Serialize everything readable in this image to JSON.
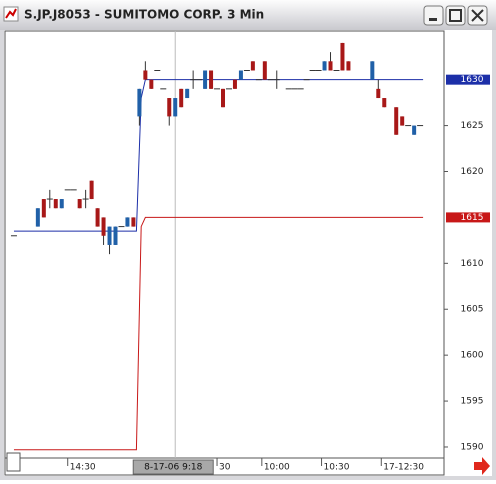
{
  "chart_data": {
    "type": "candlestick",
    "title": "S.JP.J8053 - SUMITOMO CORP. 3 Min",
    "x": [
      0,
      4,
      5,
      6,
      7,
      8,
      9,
      10,
      11,
      12,
      13,
      14,
      15,
      16,
      17,
      18,
      19,
      20,
      21,
      22,
      23,
      24,
      25,
      26,
      27,
      28,
      29,
      30,
      31,
      32,
      33,
      34,
      35,
      36,
      37,
      38,
      39,
      40,
      41,
      42,
      43,
      44,
      46,
      47,
      48,
      49,
      50,
      51,
      52,
      53,
      54,
      55,
      56,
      60,
      61,
      62,
      64,
      65,
      66,
      67,
      68
    ],
    "open": [
      1613,
      1614,
      1617,
      1617,
      1617,
      1616,
      1618,
      1618,
      1617,
      1617,
      1619,
      1616,
      1615,
      1612,
      1612,
      1614,
      1614,
      1615,
      1626,
      1631,
      1630,
      1631,
      1629,
      1628,
      1626,
      1629,
      1628,
      1630,
      1630,
      1629,
      1631,
      1629,
      1629,
      1629,
      1630,
      1630,
      1631,
      1632,
      1630,
      1632,
      1630,
      1630,
      1629,
      1629,
      1629,
      1630,
      1631,
      1631,
      1631,
      1632,
      1631,
      1634,
      1632,
      1630,
      1629,
      1628,
      1627,
      1626,
      1625,
      1624,
      1625
    ],
    "high": [
      1613,
      1616,
      1617,
      1618,
      1617,
      1617,
      1618,
      1618,
      1617,
      1618,
      1619,
      1616,
      1615,
      1614,
      1614,
      1614,
      1615,
      1615,
      1629,
      1632,
      1630,
      1631,
      1629,
      1628,
      1628,
      1629,
      1629,
      1631,
      1630,
      1631,
      1631,
      1629,
      1629,
      1629,
      1630,
      1631,
      1631,
      1632,
      1630,
      1632,
      1630,
      1631,
      1629,
      1629,
      1629,
      1630,
      1631,
      1631,
      1632,
      1633,
      1631,
      1634,
      1632,
      1632,
      1630,
      1628,
      1627,
      1626,
      1625,
      1625,
      1625
    ],
    "low": [
      1613,
      1614,
      1615,
      1616,
      1616,
      1616,
      1618,
      1618,
      1616,
      1616,
      1617,
      1614,
      1612,
      1611,
      1612,
      1614,
      1614,
      1614,
      1625,
      1630,
      1629,
      1631,
      1629,
      1625,
      1626,
      1627,
      1628,
      1629,
      1630,
      1629,
      1629,
      1629,
      1627,
      1629,
      1629,
      1630,
      1631,
      1631,
      1630,
      1630,
      1630,
      1629,
      1629,
      1629,
      1629,
      1630,
      1631,
      1631,
      1631,
      1631,
      1631,
      1631,
      1631,
      1630,
      1628,
      1627,
      1624,
      1625,
      1625,
      1624,
      1625
    ],
    "close": [
      1613,
      1616,
      1615,
      1617,
      1616,
      1617,
      1618,
      1618,
      1616,
      1617,
      1617,
      1614,
      1613,
      1614,
      1614,
      1614,
      1615,
      1614,
      1629,
      1630,
      1629,
      1631,
      1629,
      1626,
      1628,
      1627,
      1629,
      1630,
      1630,
      1631,
      1629,
      1629,
      1627,
      1629,
      1629,
      1631,
      1631,
      1631,
      1630,
      1630,
      1630,
      1630,
      1629,
      1629,
      1629,
      1630,
      1631,
      1631,
      1632,
      1631,
      1631,
      1631,
      1631,
      1632,
      1628,
      1627,
      1624,
      1625,
      1625,
      1625,
      1625
    ],
    "up_color": "#2060a8",
    "down_color": "#a81818",
    "series": [
      {
        "color": "#1c2fa8",
        "x": [
          0,
          20.5,
          21.3,
          22,
          68.5
        ],
        "values": [
          1613.5,
          1613.5,
          1628,
          1630,
          1630
        ]
      },
      {
        "color": "#c81818",
        "x": [
          0,
          20.5,
          21.3,
          22,
          68.5
        ],
        "values": [
          1589.7,
          1589.7,
          1614,
          1615,
          1615
        ]
      }
    ],
    "xlim": [
      -1.5,
      72
    ],
    "ylim": [
      1588.8,
      1635.3
    ],
    "yticks": [
      1590,
      1595,
      1600,
      1605,
      1610,
      1620,
      1625
    ],
    "xticks": [
      {
        "value": 9,
        "label": "14:30"
      },
      {
        "value": 34,
        "label": "30"
      },
      {
        "value": 41.5,
        "label": "10:00"
      },
      {
        "value": 51.5,
        "label": "10:30"
      },
      {
        "value": 61.5,
        "label": "17-12:30"
      }
    ],
    "cursor": {
      "x": 27,
      "label": "8-17-06  9:18"
    }
  }
}
